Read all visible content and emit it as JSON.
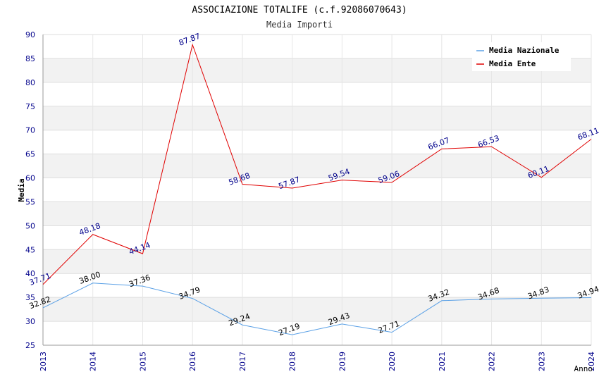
{
  "chart_data": {
    "type": "line",
    "title": "ASSOCIAZIONE TOTALIFE (c.f.92086070643)",
    "subtitle": "Media Importi",
    "xlabel": "Anno",
    "ylabel": "Media",
    "ylim": [
      25,
      90
    ],
    "y_ticks": [
      25,
      30,
      35,
      40,
      45,
      50,
      55,
      60,
      65,
      70,
      75,
      80,
      85,
      90
    ],
    "categories": [
      "2013",
      "2014",
      "2015",
      "2016",
      "2017",
      "2018",
      "2019",
      "2020",
      "2021",
      "2022",
      "2023",
      "2024"
    ],
    "grid": true,
    "legend_position": "top-right",
    "series": [
      {
        "name": "Media Nazionale",
        "color": "#5aa0e6",
        "label_color": "#000000",
        "values": [
          32.82,
          38.0,
          37.36,
          34.79,
          29.24,
          27.19,
          29.43,
          27.71,
          34.32,
          34.68,
          34.83,
          34.94
        ],
        "labels": [
          "32.82",
          "38.00",
          "37.36",
          "34.79",
          "29.24",
          "27.19",
          "29.43",
          "27.71",
          "34.32",
          "34.68",
          "34.83",
          "34.94"
        ]
      },
      {
        "name": "Media Ente",
        "color": "#e00000",
        "label_color": "#00008b",
        "values": [
          37.71,
          48.18,
          44.14,
          87.87,
          58.68,
          57.87,
          59.54,
          59.06,
          66.07,
          66.53,
          60.11,
          68.11
        ],
        "labels": [
          "37.71",
          "48.18",
          "44.14",
          "87.87",
          "58.68",
          "57.87",
          "59.54",
          "59.06",
          "66.07",
          "66.53",
          "60.11",
          "68.11"
        ]
      }
    ]
  }
}
